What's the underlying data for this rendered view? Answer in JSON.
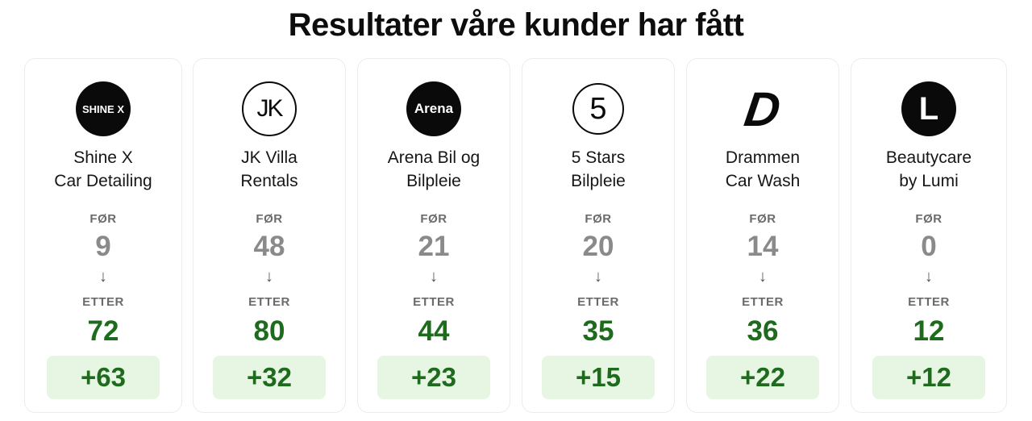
{
  "title": "Resultater våre kunder har fått",
  "before_label": "FØR",
  "after_label": "ETTER",
  "arrow": "↓",
  "colors": {
    "after": "#1e6b1e",
    "delta_bg": "#e6f6e3",
    "before": "#8a8a8a"
  },
  "cards": [
    {
      "logo_text": "SHINE X",
      "logo_style": "dark",
      "name_line1": "Shine X",
      "name_line2": "Car Detailing",
      "before": "9",
      "after": "72",
      "delta": "+63"
    },
    {
      "logo_text": "JK",
      "logo_style": "light",
      "name_line1": "JK Villa",
      "name_line2": "Rentals",
      "before": "48",
      "after": "80",
      "delta": "+32"
    },
    {
      "logo_text": "Arena",
      "logo_style": "dark",
      "name_line1": "Arena Bil og",
      "name_line2": "Bilpleie",
      "before": "21",
      "after": "44",
      "delta": "+23"
    },
    {
      "logo_text": "5",
      "logo_style": "light",
      "name_line1": "5 Stars",
      "name_line2": "Bilpleie",
      "before": "20",
      "after": "35",
      "delta": "+15"
    },
    {
      "logo_text": "D",
      "logo_style": "plain",
      "name_line1": "Drammen",
      "name_line2": "Car Wash",
      "before": "14",
      "after": "36",
      "delta": "+22"
    },
    {
      "logo_text": "L",
      "logo_style": "dark",
      "name_line1": "Beautycare",
      "name_line2": "by Lumi",
      "before": "0",
      "after": "12",
      "delta": "+12"
    }
  ]
}
